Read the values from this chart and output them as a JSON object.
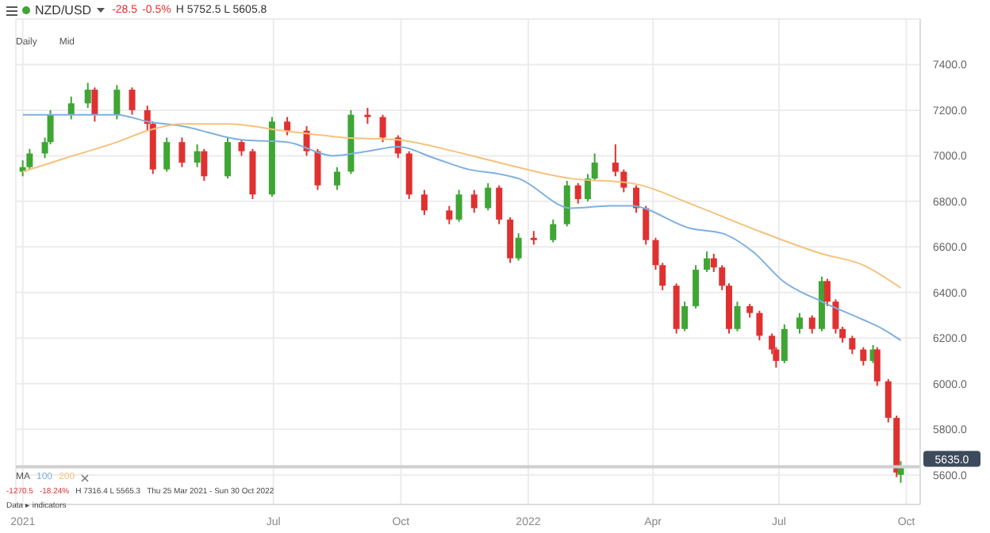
{
  "chart_data": {
    "type": "candlestick",
    "title": "NZD/USD",
    "annotations": [
      "Daily",
      "Mid",
      "-28.5",
      "-0.5%",
      "H 5752.5 L 5605.8",
      "-1270.5",
      "-18.24%",
      "H 7316.4 L 5565.3",
      "Thu 25 Mar 2021 - Sun 30 Oct 2022",
      "Data ▸ indicators"
    ],
    "x": [
      "2021-01-01",
      "2021-01-06",
      "2021-01-17",
      "2021-01-21",
      "2021-02-05",
      "2021-02-17",
      "2021-02-22",
      "2021-03-10",
      "2021-03-21",
      "2021-04-01",
      "2021-04-05",
      "2021-04-15",
      "2021-04-26",
      "2021-05-07",
      "2021-05-12",
      "2021-05-29",
      "2021-06-08",
      "2021-06-16",
      "2021-06-30",
      "2021-07-11",
      "2021-07-25",
      "2021-08-02",
      "2021-08-16",
      "2021-08-26",
      "2021-09-07",
      "2021-09-18",
      "2021-09-29",
      "2021-10-07",
      "2021-10-18",
      "2021-11-05",
      "2021-11-12",
      "2021-11-23",
      "2021-12-03",
      "2021-12-11",
      "2021-12-19",
      "2021-12-25",
      "2022-01-05",
      "2022-01-19",
      "2022-01-29",
      "2022-02-06",
      "2022-02-13",
      "2022-02-18",
      "2022-03-05",
      "2022-03-11",
      "2022-03-20",
      "2022-03-27",
      "2022-04-03",
      "2022-04-08",
      "2022-04-18",
      "2022-04-24",
      "2022-05-02",
      "2022-05-10",
      "2022-05-15",
      "2022-05-21",
      "2022-05-26",
      "2022-06-01",
      "2022-06-10",
      "2022-06-17",
      "2022-06-26",
      "2022-06-29",
      "2022-07-05",
      "2022-07-16",
      "2022-07-25",
      "2022-08-01",
      "2022-08-05",
      "2022-08-11",
      "2022-08-16",
      "2022-08-23",
      "2022-08-31",
      "2022-09-07",
      "2022-09-10",
      "2022-09-18",
      "2022-09-24",
      "2022-09-27"
    ],
    "ohlc": [
      [
        6930,
        6980,
        6910,
        6950
      ],
      [
        6950,
        7030,
        6940,
        7010
      ],
      [
        7010,
        7080,
        6990,
        7060
      ],
      [
        7060,
        7200,
        7050,
        7180
      ],
      [
        7180,
        7260,
        7160,
        7230
      ],
      [
        7230,
        7320,
        7210,
        7290
      ],
      [
        7290,
        7300,
        7150,
        7180
      ],
      [
        7180,
        7310,
        7160,
        7290
      ],
      [
        7290,
        7300,
        7180,
        7200
      ],
      [
        7200,
        7220,
        7110,
        7140
      ],
      [
        7140,
        7150,
        6920,
        6940
      ],
      [
        6940,
        7080,
        6930,
        7060
      ],
      [
        7060,
        7080,
        6950,
        6970
      ],
      [
        6970,
        7050,
        6950,
        7020
      ],
      [
        7020,
        7030,
        6890,
        6910
      ],
      [
        6910,
        7080,
        6900,
        7060
      ],
      [
        7060,
        7070,
        7000,
        7020
      ],
      [
        7020,
        7030,
        6810,
        6830
      ],
      [
        6830,
        7170,
        6820,
        7150
      ],
      [
        7150,
        7170,
        7090,
        7110
      ],
      [
        7110,
        7130,
        7000,
        7020
      ],
      [
        7020,
        7030,
        6850,
        6870
      ],
      [
        6870,
        6950,
        6850,
        6930
      ],
      [
        6930,
        7200,
        6920,
        7180
      ],
      [
        7180,
        7210,
        7140,
        7170
      ],
      [
        7170,
        7180,
        7060,
        7080
      ],
      [
        7080,
        7090,
        6990,
        7010
      ],
      [
        7010,
        7020,
        6810,
        6830
      ],
      [
        6830,
        6850,
        6740,
        6760
      ],
      [
        6760,
        6780,
        6700,
        6720
      ],
      [
        6720,
        6850,
        6710,
        6830
      ],
      [
        6830,
        6850,
        6750,
        6770
      ],
      [
        6770,
        6880,
        6760,
        6860
      ],
      [
        6860,
        6870,
        6700,
        6720
      ],
      [
        6720,
        6730,
        6530,
        6550
      ],
      [
        6550,
        6660,
        6540,
        6640
      ],
      [
        6640,
        6670,
        6610,
        6630
      ],
      [
        6630,
        6720,
        6620,
        6700
      ],
      [
        6700,
        6890,
        6690,
        6870
      ],
      [
        6870,
        6880,
        6790,
        6810
      ],
      [
        6810,
        6920,
        6800,
        6900
      ],
      [
        6900,
        7010,
        6890,
        6970
      ],
      [
        6970,
        7050,
        6910,
        6930
      ],
      [
        6930,
        6940,
        6840,
        6860
      ],
      [
        6860,
        6870,
        6750,
        6770
      ],
      [
        6770,
        6780,
        6610,
        6630
      ],
      [
        6630,
        6640,
        6500,
        6520
      ],
      [
        6520,
        6530,
        6410,
        6430
      ],
      [
        6430,
        6440,
        6220,
        6240
      ],
      [
        6240,
        6360,
        6230,
        6340
      ],
      [
        6340,
        6520,
        6330,
        6500
      ],
      [
        6500,
        6580,
        6490,
        6550
      ],
      [
        6550,
        6570,
        6490,
        6510
      ],
      [
        6510,
        6520,
        6410,
        6430
      ],
      [
        6430,
        6440,
        6220,
        6240
      ],
      [
        6240,
        6360,
        6230,
        6340
      ],
      [
        6340,
        6350,
        6290,
        6310
      ],
      [
        6310,
        6320,
        6190,
        6210
      ],
      [
        6210,
        6220,
        6130,
        6150
      ],
      [
        6150,
        6160,
        6070,
        6100
      ],
      [
        6100,
        6260,
        6090,
        6240
      ],
      [
        6240,
        6310,
        6220,
        6290
      ],
      [
        6290,
        6300,
        6220,
        6240
      ],
      [
        6240,
        6470,
        6230,
        6450
      ],
      [
        6450,
        6460,
        6340,
        6360
      ],
      [
        6360,
        6370,
        6220,
        6240
      ],
      [
        6240,
        6250,
        6180,
        6200
      ],
      [
        6200,
        6210,
        6130,
        6150
      ],
      [
        6150,
        6160,
        6080,
        6100
      ],
      [
        6100,
        6170,
        6090,
        6150
      ],
      [
        6150,
        6160,
        5990,
        6010
      ],
      [
        6010,
        6020,
        5830,
        5850
      ],
      [
        5850,
        5860,
        5590,
        5610
      ],
      [
        5600,
        5660,
        5565,
        5635
      ]
    ],
    "colors": [
      "#3fa535",
      "#3fa535",
      "#3fa535",
      "#3fa535",
      "#3fa535",
      "#3fa535",
      "#e03131",
      "#3fa535",
      "#e03131",
      "#e03131",
      "#e03131",
      "#3fa535",
      "#e03131",
      "#3fa535",
      "#e03131",
      "#3fa535",
      "#e03131",
      "#e03131",
      "#3fa535",
      "#e03131",
      "#e03131",
      "#e03131",
      "#3fa535",
      "#3fa535",
      "#e03131",
      "#e03131",
      "#e03131",
      "#e03131",
      "#e03131",
      "#e03131",
      "#3fa535",
      "#e03131",
      "#3fa535",
      "#e03131",
      "#e03131",
      "#3fa535",
      "#e03131",
      "#3fa535",
      "#3fa535",
      "#e03131",
      "#3fa535",
      "#3fa535",
      "#e03131",
      "#e03131",
      "#e03131",
      "#e03131",
      "#e03131",
      "#e03131",
      "#e03131",
      "#3fa535",
      "#3fa535",
      "#3fa535",
      "#e03131",
      "#e03131",
      "#e03131",
      "#3fa535",
      "#e03131",
      "#e03131",
      "#e03131",
      "#e03131",
      "#3fa535",
      "#3fa535",
      "#e03131",
      "#3fa535",
      "#e03131",
      "#e03131",
      "#e03131",
      "#e03131",
      "#e03131",
      "#3fa535",
      "#e03131",
      "#e03131",
      "#e03131",
      "#3fa535"
    ],
    "series": [
      {
        "name": "100",
        "type": "line",
        "color": "#7fb0e0",
        "x": [
          "2021-01-01",
          "2021-03-10",
          "2021-04-01",
          "2021-04-26",
          "2021-06-08",
          "2021-07-11",
          "2021-08-13",
          "2021-09-07",
          "2021-09-29",
          "2021-10-25",
          "2021-11-19",
          "2021-12-11",
          "2021-12-25",
          "2022-02-01",
          "2022-03-01",
          "2022-03-16",
          "2022-04-29",
          "2022-05-21",
          "2022-06-12",
          "2022-07-04",
          "2022-08-01",
          "2022-08-31",
          "2022-09-14",
          "2022-09-27"
        ],
        "values": [
          7180,
          7180,
          7150,
          7130,
          7070,
          7060,
          7000,
          7020,
          7040,
          6990,
          6940,
          6920,
          6900,
          6770,
          6780,
          6780,
          6680,
          6660,
          6580,
          6450,
          6360,
          6280,
          6240,
          6190
        ]
      },
      {
        "name": "200",
        "type": "line",
        "color": "#f5c27a",
        "x": [
          "2021-01-01",
          "2021-02-01",
          "2021-03-10",
          "2021-04-01",
          "2021-04-26",
          "2021-05-29",
          "2021-07-08",
          "2021-08-21",
          "2021-09-29",
          "2021-11-08",
          "2021-12-11",
          "2022-02-01",
          "2022-03-16",
          "2022-05-02",
          "2022-06-12",
          "2022-08-01",
          "2022-08-31",
          "2022-09-27"
        ],
        "values": [
          6930,
          6990,
          7060,
          7110,
          7140,
          7140,
          7110,
          7080,
          7070,
          7020,
          6970,
          6900,
          6880,
          6780,
          6680,
          6570,
          6520,
          6420
        ]
      }
    ],
    "legend": "bottom left",
    "legend_title": "MA",
    "ref_lines": [
      {
        "axis": "y",
        "value": 5635,
        "label": "5635.0",
        "color": "#cfcfcf"
      }
    ],
    "xlim": [
      "2020-12-27",
      "2022-10-11"
    ],
    "xticks": [
      {
        "value": "2021-01-01",
        "label": "2021"
      },
      {
        "value": "2021-07-01",
        "label": "Jul"
      },
      {
        "value": "2021-10-01",
        "label": "Oct"
      },
      {
        "value": "2022-01-01",
        "label": "2022"
      },
      {
        "value": "2022-04-01",
        "label": "Apr"
      },
      {
        "value": "2022-07-01",
        "label": "Jul"
      },
      {
        "value": "2022-10-01",
        "label": "Oct"
      }
    ],
    "ylim": [
      5470,
      7600
    ],
    "yticks": [
      {
        "value": 5600,
        "label": "5600.0"
      },
      {
        "value": 5800,
        "label": "5800.0"
      },
      {
        "value": 6000,
        "label": "6000.0"
      },
      {
        "value": 6200,
        "label": "6200.0"
      },
      {
        "value": 6400,
        "label": "6400.0"
      },
      {
        "value": 6600,
        "label": "6600.0"
      },
      {
        "value": 6800,
        "label": "6800.0"
      },
      {
        "value": 7000,
        "label": "7000.0"
      },
      {
        "value": 7200,
        "label": "7200.0"
      },
      {
        "value": 7400,
        "label": "7400.0"
      }
    ],
    "grid": true
  }
}
